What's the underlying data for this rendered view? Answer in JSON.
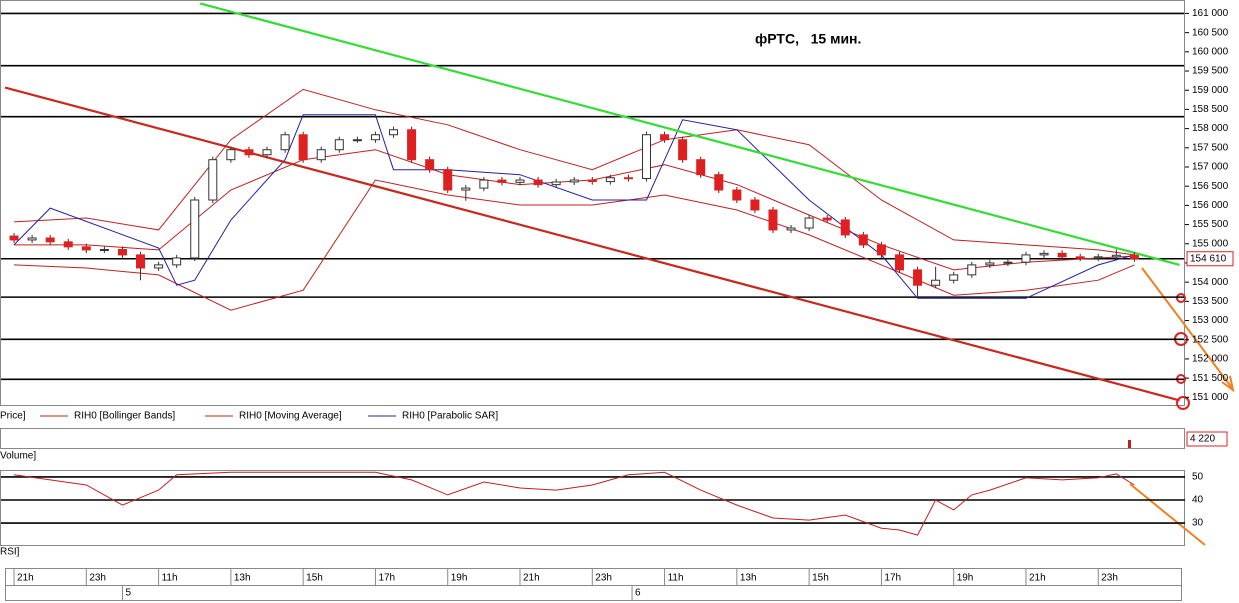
{
  "chart_data": {
    "type": "candlestick",
    "title": "фРТС,   15 мин.",
    "up_color": "#ffffff",
    "down_color": "#e02020",
    "candles": [
      [
        155200,
        155280,
        155020,
        155100
      ],
      [
        155100,
        155230,
        155020,
        155150
      ],
      [
        155150,
        155230,
        154970,
        155050
      ],
      [
        155050,
        155130,
        154840,
        154920
      ],
      [
        154920,
        155000,
        154760,
        154840
      ],
      [
        154840,
        154930,
        154760,
        154850
      ],
      [
        154850,
        154930,
        154630,
        154710
      ],
      [
        154710,
        154790,
        154050,
        154370
      ],
      [
        154370,
        154530,
        154290,
        154450
      ],
      [
        154450,
        154710,
        154370,
        154630
      ],
      [
        154630,
        156220,
        154550,
        156140
      ],
      [
        156140,
        157270,
        156060,
        157190
      ],
      [
        157190,
        157530,
        157110,
        157450
      ],
      [
        157450,
        157530,
        157240,
        157320
      ],
      [
        157320,
        157530,
        157240,
        157450
      ],
      [
        157450,
        157920,
        157370,
        157840
      ],
      [
        157840,
        157920,
        157110,
        157190
      ],
      [
        157190,
        157530,
        157110,
        157450
      ],
      [
        157450,
        157790,
        157370,
        157710
      ],
      [
        157710,
        157790,
        157630,
        157710
      ],
      [
        157710,
        157920,
        157630,
        157840
      ],
      [
        157840,
        158050,
        157760,
        157970
      ],
      [
        157970,
        158050,
        157110,
        157190
      ],
      [
        157190,
        157270,
        156850,
        156930
      ],
      [
        156930,
        157010,
        156320,
        156400
      ],
      [
        156400,
        156530,
        156120,
        156450
      ],
      [
        156450,
        156740,
        156370,
        156660
      ],
      [
        156660,
        156740,
        156520,
        156600
      ],
      [
        156600,
        156740,
        156520,
        156660
      ],
      [
        156660,
        156740,
        156460,
        156540
      ],
      [
        156540,
        156690,
        156460,
        156610
      ],
      [
        156610,
        156740,
        156530,
        156660
      ],
      [
        156660,
        156740,
        156540,
        156620
      ],
      [
        156620,
        156800,
        156540,
        156720
      ],
      [
        156720,
        156800,
        156620,
        156700
      ],
      [
        156700,
        157920,
        156620,
        157840
      ],
      [
        157840,
        157920,
        157630,
        157710
      ],
      [
        157710,
        157790,
        157110,
        157190
      ],
      [
        157190,
        157270,
        156720,
        156800
      ],
      [
        156800,
        156880,
        156320,
        156400
      ],
      [
        156400,
        156480,
        156060,
        156140
      ],
      [
        156140,
        156220,
        155800,
        155880
      ],
      [
        155880,
        155960,
        155280,
        155360
      ],
      [
        155360,
        155490,
        155280,
        155410
      ],
      [
        155410,
        155750,
        155330,
        155670
      ],
      [
        155670,
        155750,
        155540,
        155620
      ],
      [
        155620,
        155700,
        155150,
        155230
      ],
      [
        155230,
        155310,
        154890,
        154970
      ],
      [
        154970,
        155050,
        154630,
        154710
      ],
      [
        154710,
        154790,
        154240,
        154320
      ],
      [
        154320,
        154400,
        153600,
        153920
      ],
      [
        153920,
        154400,
        153840,
        154050
      ],
      [
        154050,
        154270,
        153970,
        154190
      ],
      [
        154190,
        154530,
        154110,
        154450
      ],
      [
        154450,
        154580,
        154370,
        154500
      ],
      [
        154500,
        154600,
        154420,
        154520
      ],
      [
        154520,
        154790,
        154440,
        154710
      ],
      [
        154710,
        154830,
        154630,
        154750
      ],
      [
        154750,
        154830,
        154580,
        154660
      ],
      [
        154660,
        154740,
        154550,
        154630
      ],
      [
        154630,
        154740,
        154550,
        154660
      ],
      [
        154660,
        154850,
        154580,
        154700
      ],
      [
        154700,
        154780,
        154530,
        154610
      ]
    ],
    "xlim": [
      -0.5,
      64.8
    ],
    "ylim": [
      150800,
      161350
    ],
    "yticks": [
      {
        "value": 151000,
        "label": "151 000"
      },
      {
        "value": 151500,
        "label": "151 500"
      },
      {
        "value": 152000,
        "label": "152 000"
      },
      {
        "value": 152500,
        "label": "152 500"
      },
      {
        "value": 153000,
        "label": "153 000"
      },
      {
        "value": 153500,
        "label": "153 500"
      },
      {
        "value": 154000,
        "label": "154 000"
      },
      {
        "value": 154500,
        "label": "154 500"
      },
      {
        "value": 155000,
        "label": "155 000"
      },
      {
        "value": 155500,
        "label": "155 500"
      },
      {
        "value": 156000,
        "label": "156 000"
      },
      {
        "value": 156500,
        "label": "156 500"
      },
      {
        "value": 157000,
        "label": "157 000"
      },
      {
        "value": 157500,
        "label": "157 500"
      },
      {
        "value": 158000,
        "label": "158 000"
      },
      {
        "value": 158500,
        "label": "158 500"
      },
      {
        "value": 159000,
        "label": "159 000"
      },
      {
        "value": 159500,
        "label": "159 500"
      },
      {
        "value": 160000,
        "label": "160 000"
      },
      {
        "value": 160500,
        "label": "160 500"
      },
      {
        "value": 161000,
        "label": "161 000"
      }
    ],
    "xticks": [
      {
        "value": 0,
        "label": "21h"
      },
      {
        "value": 4,
        "label": "23h"
      },
      {
        "value": 8,
        "label": "11h"
      },
      {
        "value": 12,
        "label": "13h"
      },
      {
        "value": 16,
        "label": "15h"
      },
      {
        "value": 20,
        "label": "17h"
      },
      {
        "value": 24,
        "label": "19h"
      },
      {
        "value": 28,
        "label": "21h"
      },
      {
        "value": 32,
        "label": "23h"
      },
      {
        "value": 36,
        "label": "11h"
      },
      {
        "value": 40,
        "label": "13h"
      },
      {
        "value": 44,
        "label": "15h"
      },
      {
        "value": 48,
        "label": "17h"
      },
      {
        "value": 52,
        "label": "19h"
      },
      {
        "value": 56,
        "label": "21h"
      },
      {
        "value": 60,
        "label": "23h"
      }
    ],
    "day_ticks": [
      {
        "value": 6,
        "label": "5"
      },
      {
        "value": 34.2,
        "label": "6"
      }
    ],
    "last_price": {
      "value": 154610,
      "label": "154 610"
    },
    "levels": [
      161000,
      159640,
      158310,
      154610,
      153610,
      152510,
      151470
    ],
    "level_color": "#000000",
    "trendlines": [
      {
        "color": "#33dd33",
        "points": [
          [
            10.3,
            161260
          ],
          [
            64.5,
            154450
          ]
        ]
      },
      {
        "color": "#c8281e",
        "points": [
          [
            -0.5,
            159070
          ],
          [
            64.5,
            150920
          ]
        ]
      }
    ],
    "price_label": "Price]",
    "bollinger": {
      "name": "RIH0 [Bollinger Bands]",
      "color": "#c02020",
      "x": [
        0,
        4,
        8,
        12,
        16,
        20,
        24,
        28,
        32,
        36,
        40,
        44,
        48,
        52,
        56,
        60,
        62
      ],
      "upper": [
        155570,
        155670,
        155360,
        157710,
        159020,
        158490,
        158100,
        157450,
        156930,
        157710,
        157970,
        157580,
        156140,
        155100,
        154970,
        154840,
        154710
      ],
      "lower": [
        154450,
        154370,
        154190,
        153270,
        153790,
        156660,
        156270,
        156010,
        156010,
        156270,
        155880,
        155230,
        154450,
        153660,
        153790,
        154050,
        154450
      ]
    },
    "moving_average": {
      "name": "RIH0 [Moving Average]",
      "color": "#c02020",
      "x": [
        0,
        4,
        8,
        12,
        16,
        20,
        24,
        28,
        32,
        36,
        40,
        44,
        48,
        52,
        56,
        60,
        62
      ],
      "values": [
        154970,
        154970,
        154840,
        156400,
        157190,
        157450,
        156800,
        156540,
        156660,
        157060,
        156540,
        155750,
        154970,
        154320,
        154520,
        154630,
        154680
      ]
    },
    "sar": {
      "name": "RIH0 [Parabolic SAR]",
      "color": "#2020a0",
      "x": [
        0,
        2,
        8,
        9,
        10,
        12,
        15,
        16,
        20,
        21,
        24,
        28,
        32,
        35,
        36,
        37,
        40,
        44,
        48,
        50,
        56,
        60,
        62
      ],
      "values": [
        154970,
        155930,
        154890,
        153920,
        154050,
        155620,
        157190,
        158360,
        158360,
        156930,
        156930,
        156800,
        156140,
        156140,
        157190,
        158230,
        157970,
        156140,
        154710,
        153580,
        153580,
        154450,
        154710
      ]
    },
    "volume": {
      "label": "Volume]",
      "last": {
        "value": 4220,
        "label": "4 220"
      }
    },
    "rsi": {
      "label": "RSI]",
      "color": "#c02020",
      "ylim": [
        20.5,
        53
      ],
      "yticks": [
        30,
        40,
        50
      ],
      "x": [
        0,
        2,
        4,
        6,
        8,
        9,
        12,
        16,
        20,
        22,
        24,
        26,
        28,
        30,
        32,
        34,
        36,
        38,
        40,
        42,
        44,
        46,
        48,
        49,
        50,
        51,
        52,
        53,
        54,
        56,
        58,
        60,
        61,
        62
      ],
      "values": [
        50.9,
        48.7,
        46.5,
        37.8,
        44.3,
        50.9,
        52,
        52,
        52,
        48.7,
        42.2,
        47.8,
        45.2,
        44.3,
        46.5,
        50.9,
        52,
        44.3,
        37.8,
        32.2,
        31.3,
        33.5,
        27.8,
        27,
        24.8,
        40,
        35.7,
        42.2,
        44.3,
        49.6,
        48.7,
        49.6,
        51.3,
        46.5
      ]
    }
  }
}
